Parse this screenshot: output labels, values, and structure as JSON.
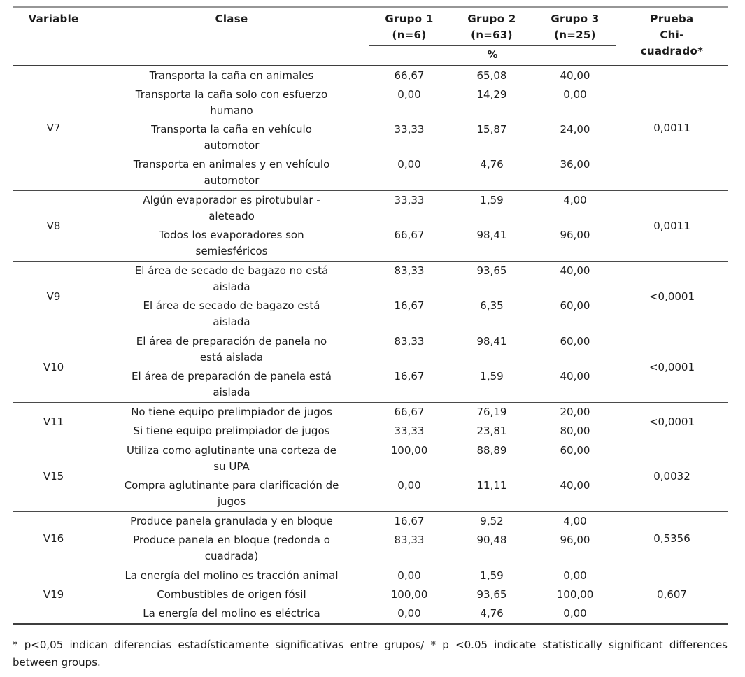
{
  "table": {
    "header": {
      "variable": "Variable",
      "clase": "Clase",
      "grupo1": "Grupo 1\n(n=6)",
      "grupo2": "Grupo 2\n(n=63)",
      "grupo3": "Grupo 3\n(n=25)",
      "percent": "%",
      "chi": "Prueba\nChi-\ncuadrado*"
    },
    "sections": [
      {
        "variable": "V7",
        "chi": "0,0011",
        "rows": [
          {
            "clase": "Transporta la caña en animales",
            "g1": "66,67",
            "g2": "65,08",
            "g3": "40,00"
          },
          {
            "clase": "Transporta la caña solo con esfuerzo\nhumano",
            "g1": "0,00",
            "g2": "14,29",
            "g3": "0,00"
          },
          {
            "clase": "Transporta la caña en vehículo\nautomotor",
            "g1": "33,33",
            "g2": "15,87",
            "g3": "24,00"
          },
          {
            "clase": "Transporta en animales y en vehículo\nautomotor",
            "g1": "0,00",
            "g2": "4,76",
            "g3": "36,00"
          }
        ]
      },
      {
        "variable": "V8",
        "chi": "0,0011",
        "rows": [
          {
            "clase": "Algún evaporador es pirotubular -\naleteado",
            "g1": "33,33",
            "g2": "1,59",
            "g3": "4,00"
          },
          {
            "clase": "Todos los evaporadores son\nsemiesféricos",
            "g1": "66,67",
            "g2": "98,41",
            "g3": "96,00"
          }
        ]
      },
      {
        "variable": "V9",
        "chi": "<0,0001",
        "rows": [
          {
            "clase": "El área de secado de bagazo no está\naislada",
            "g1": "83,33",
            "g2": "93,65",
            "g3": "40,00"
          },
          {
            "clase": "El área de secado de bagazo está\naislada",
            "g1": "16,67",
            "g2": "6,35",
            "g3": "60,00"
          }
        ]
      },
      {
        "variable": "V10",
        "chi": "<0,0001",
        "rows": [
          {
            "clase": "El área de preparación de panela no\nestá aislada",
            "g1": "83,33",
            "g2": "98,41",
            "g3": "60,00"
          },
          {
            "clase": "El área de preparación de panela está\naislada",
            "g1": "16,67",
            "g2": "1,59",
            "g3": "40,00"
          }
        ]
      },
      {
        "variable": "V11",
        "chi": "<0,0001",
        "rows": [
          {
            "clase": "No tiene equipo prelimpiador de jugos",
            "g1": "66,67",
            "g2": "76,19",
            "g3": "20,00"
          },
          {
            "clase": "Si tiene equipo prelimpiador de jugos",
            "g1": "33,33",
            "g2": "23,81",
            "g3": "80,00"
          }
        ]
      },
      {
        "variable": "V15",
        "chi": "0,0032",
        "rows": [
          {
            "clase": "Utiliza como aglutinante una corteza de\nsu UPA",
            "g1": "100,00",
            "g2": "88,89",
            "g3": "60,00"
          },
          {
            "clase": "Compra aglutinante para clarificación de\njugos",
            "g1": "0,00",
            "g2": "11,11",
            "g3": "40,00"
          }
        ]
      },
      {
        "variable": "V16",
        "chi": "0,5356",
        "rows": [
          {
            "clase": "Produce panela granulada y en bloque",
            "g1": "16,67",
            "g2": "9,52",
            "g3": "4,00"
          },
          {
            "clase": "Produce panela en bloque (redonda o\ncuadrada)",
            "g1": "83,33",
            "g2": "90,48",
            "g3": "96,00"
          }
        ]
      },
      {
        "variable": "V19",
        "chi": "0,607",
        "rows": [
          {
            "clase": "La energía del molino es tracción animal",
            "g1": "0,00",
            "g2": "1,59",
            "g3": "0,00"
          },
          {
            "clase": "Combustibles de origen fósil",
            "g1": "100,00",
            "g2": "93,65",
            "g3": "100,00"
          },
          {
            "clase": "La energía del molino es eléctrica",
            "g1": "0,00",
            "g2": "4,76",
            "g3": "0,00"
          }
        ]
      }
    ]
  },
  "footnote": "* p<0,05 indican diferencias estadísticamente significativas entre grupos/ * p <0.05 indicate statistically significant differences between groups."
}
